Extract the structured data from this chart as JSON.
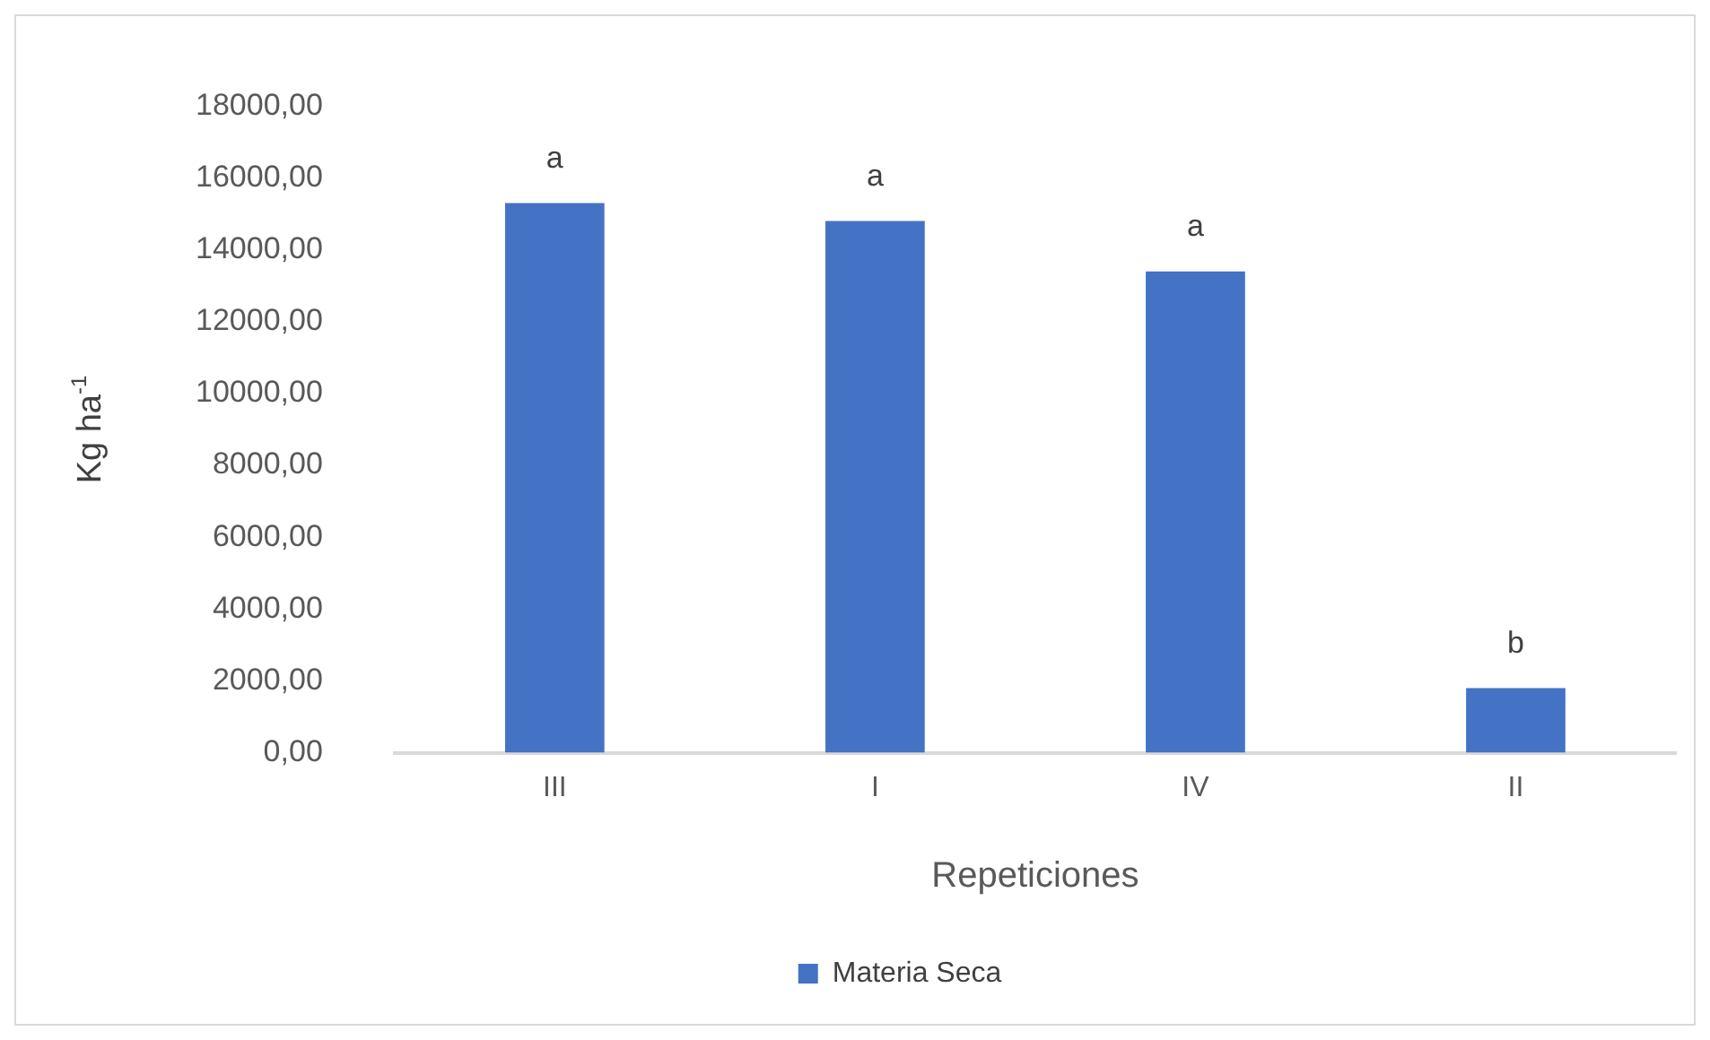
{
  "chart_data": {
    "type": "bar",
    "categories": [
      "III",
      "I",
      "IV",
      "II"
    ],
    "series": [
      {
        "name": "Materia Seca",
        "color": "#4472c4",
        "values": [
          15300,
          14800,
          13400,
          1800
        ]
      }
    ],
    "xlabel": "Repeticiones",
    "ylabel": "Kg ha$^{-1}$",
    "ylim": [
      0,
      18000
    ],
    "yticks": [
      {
        "value": 0,
        "label": "0,00"
      },
      {
        "value": 2000,
        "label": "2000,00"
      },
      {
        "value": 4000,
        "label": "4000,00"
      },
      {
        "value": 6000,
        "label": "6000,00"
      },
      {
        "value": 8000,
        "label": "8000,00"
      },
      {
        "value": 10000,
        "label": "10000,00"
      },
      {
        "value": 12000,
        "label": "12000,00"
      },
      {
        "value": 14000,
        "label": "14000,00"
      },
      {
        "value": 16000,
        "label": "16000,00"
      },
      {
        "value": 18000,
        "label": "18000,00"
      }
    ],
    "annotations": [
      {
        "text": "a",
        "x": "III",
        "y": 15300
      },
      {
        "text": "a",
        "x": "I",
        "y": 14800
      },
      {
        "text": "a",
        "x": "IV",
        "y": 13400
      },
      {
        "text": "b",
        "x": "II",
        "y": 1800
      }
    ],
    "grid": false,
    "legend": "bottom"
  }
}
